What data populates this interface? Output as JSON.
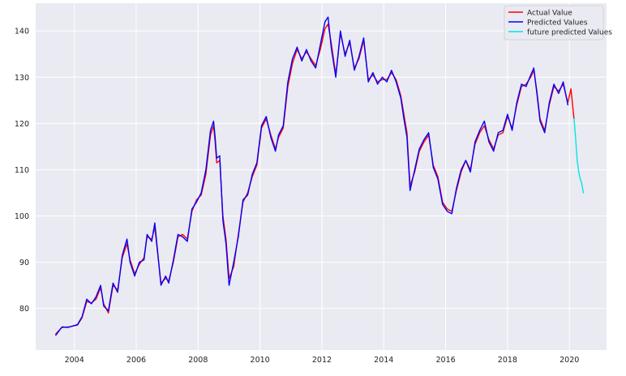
{
  "chart_data": {
    "type": "line",
    "title": "",
    "xlabel": "",
    "ylabel": "",
    "xlim": [
      2002.75,
      2021.2
    ],
    "ylim": [
      71,
      146
    ],
    "xticks": [
      2004,
      2006,
      2008,
      2010,
      2012,
      2014,
      2016,
      2018,
      2020
    ],
    "yticks": [
      80,
      90,
      100,
      110,
      120,
      130,
      140
    ],
    "grid": true,
    "legend_position": "top-right",
    "series": [
      {
        "name": "Actual Value",
        "color": "#ff0000",
        "x": [
          2003.4,
          2003.6,
          2003.8,
          2004.1,
          2004.25,
          2004.4,
          2004.55,
          2004.7,
          2004.85,
          2004.95,
          2005.1,
          2005.25,
          2005.4,
          2005.55,
          2005.7,
          2005.8,
          2005.95,
          2006.1,
          2006.25,
          2006.35,
          2006.5,
          2006.6,
          2006.8,
          2006.95,
          2007.05,
          2007.2,
          2007.35,
          2007.5,
          2007.65,
          2007.8,
          2007.95,
          2008.1,
          2008.25,
          2008.4,
          2008.5,
          2008.55,
          2008.6,
          2008.7,
          2008.8,
          2008.9,
          2009.0,
          2009.15,
          2009.3,
          2009.45,
          2009.6,
          2009.75,
          2009.9,
          2010.05,
          2010.2,
          2010.35,
          2010.5,
          2010.6,
          2010.75,
          2010.9,
          2011.05,
          2011.2,
          2011.35,
          2011.5,
          2011.65,
          2011.8,
          2011.95,
          2012.1,
          2012.2,
          2012.3,
          2012.45,
          2012.6,
          2012.75,
          2012.9,
          2013.05,
          2013.2,
          2013.35,
          2013.5,
          2013.65,
          2013.8,
          2013.95,
          2014.1,
          2014.25,
          2014.4,
          2014.55,
          2014.65,
          2014.75,
          2014.85,
          2015.0,
          2015.15,
          2015.3,
          2015.45,
          2015.6,
          2015.75,
          2015.9,
          2016.05,
          2016.2,
          2016.35,
          2016.5,
          2016.65,
          2016.8,
          2016.95,
          2017.1,
          2017.25,
          2017.4,
          2017.55,
          2017.7,
          2017.85,
          2018.0,
          2018.15,
          2018.3,
          2018.45,
          2018.6,
          2018.75,
          2018.85,
          2018.95,
          2019.05,
          2019.2,
          2019.35,
          2019.5,
          2019.65,
          2019.8,
          2019.95,
          2020.05,
          2020.15
        ],
        "y": [
          74.5,
          75.9,
          76.0,
          76.4,
          78.0,
          81.5,
          81.2,
          82.0,
          84.5,
          81.0,
          79.0,
          85.0,
          84.0,
          91.0,
          94.0,
          90.5,
          87.5,
          89.5,
          91.0,
          95.5,
          95.0,
          97.5,
          85.5,
          86.5,
          86.0,
          90.0,
          95.5,
          96.0,
          95.0,
          101.0,
          103.5,
          104.5,
          109.0,
          117.5,
          119.5,
          116.0,
          111.5,
          112.0,
          100.0,
          95.0,
          86.5,
          89.0,
          96.0,
          103.0,
          105.0,
          108.5,
          111.0,
          119.0,
          121.0,
          117.5,
          114.5,
          117.0,
          119.0,
          128.0,
          133.0,
          136.0,
          134.0,
          135.5,
          134.0,
          132.5,
          136.0,
          140.5,
          141.5,
          137.5,
          130.5,
          139.5,
          135.0,
          137.5,
          132.0,
          134.0,
          138.0,
          129.5,
          130.5,
          129.0,
          129.5,
          129.5,
          131.0,
          129.5,
          126.0,
          122.0,
          118.0,
          106.5,
          109.5,
          114.0,
          116.0,
          117.5,
          111.0,
          108.5,
          103.0,
          101.5,
          101.0,
          105.5,
          109.5,
          112.0,
          110.0,
          115.5,
          118.0,
          119.5,
          116.5,
          114.5,
          117.5,
          118.0,
          121.5,
          119.0,
          124.0,
          128.0,
          128.5,
          130.0,
          131.5,
          127.0,
          121.0,
          118.5,
          124.0,
          128.0,
          127.0,
          128.5,
          124.5,
          127.5,
          121.0
        ]
      },
      {
        "name": "Predicted Values",
        "color": "#0000ff",
        "x": [
          2003.4,
          2003.6,
          2003.8,
          2004.1,
          2004.25,
          2004.4,
          2004.55,
          2004.7,
          2004.85,
          2004.95,
          2005.1,
          2005.25,
          2005.4,
          2005.55,
          2005.7,
          2005.8,
          2005.95,
          2006.1,
          2006.25,
          2006.35,
          2006.5,
          2006.6,
          2006.8,
          2006.95,
          2007.05,
          2007.2,
          2007.35,
          2007.5,
          2007.65,
          2007.8,
          2007.95,
          2008.1,
          2008.25,
          2008.4,
          2008.5,
          2008.55,
          2008.6,
          2008.7,
          2008.8,
          2008.9,
          2009.0,
          2009.15,
          2009.3,
          2009.45,
          2009.6,
          2009.75,
          2009.9,
          2010.05,
          2010.2,
          2010.35,
          2010.5,
          2010.6,
          2010.75,
          2010.9,
          2011.05,
          2011.2,
          2011.35,
          2011.5,
          2011.65,
          2011.8,
          2011.95,
          2012.1,
          2012.2,
          2012.3,
          2012.45,
          2012.6,
          2012.75,
          2012.9,
          2013.05,
          2013.2,
          2013.35,
          2013.5,
          2013.65,
          2013.8,
          2013.95,
          2014.1,
          2014.25,
          2014.4,
          2014.55,
          2014.65,
          2014.75,
          2014.85,
          2015.0,
          2015.15,
          2015.3,
          2015.45,
          2015.6,
          2015.75,
          2015.9,
          2016.05,
          2016.2,
          2016.35,
          2016.5,
          2016.65,
          2016.8,
          2016.95,
          2017.1,
          2017.25,
          2017.4,
          2017.55,
          2017.7,
          2017.85,
          2018.0,
          2018.15,
          2018.3,
          2018.45,
          2018.6,
          2018.75,
          2018.85,
          2018.95,
          2019.05,
          2019.2,
          2019.35,
          2019.5,
          2019.65,
          2019.8,
          2019.95
        ],
        "y": [
          74.2,
          76.0,
          75.9,
          76.5,
          78.2,
          82.0,
          81.0,
          82.5,
          85.0,
          80.5,
          79.5,
          85.5,
          83.5,
          91.5,
          95.0,
          90.0,
          87.0,
          90.0,
          90.5,
          96.0,
          94.5,
          98.5,
          85.0,
          87.0,
          85.5,
          90.5,
          96.0,
          95.5,
          94.5,
          101.5,
          103.0,
          105.0,
          110.0,
          118.5,
          120.5,
          117.0,
          112.5,
          113.0,
          99.0,
          94.0,
          85.0,
          90.0,
          95.5,
          103.5,
          104.5,
          109.0,
          111.5,
          119.5,
          121.5,
          117.0,
          114.0,
          117.5,
          119.5,
          129.0,
          134.0,
          136.5,
          133.5,
          136.0,
          133.5,
          132.0,
          137.0,
          142.0,
          143.0,
          136.5,
          130.0,
          140.0,
          134.5,
          138.0,
          131.5,
          134.5,
          138.5,
          129.0,
          131.0,
          128.5,
          130.0,
          129.0,
          131.5,
          129.0,
          125.5,
          121.0,
          117.0,
          105.5,
          110.0,
          114.5,
          116.5,
          118.0,
          110.5,
          108.0,
          102.5,
          101.0,
          100.5,
          106.0,
          110.0,
          112.0,
          109.5,
          116.0,
          118.5,
          120.5,
          116.0,
          114.0,
          118.0,
          118.5,
          122.0,
          118.5,
          124.5,
          128.5,
          128.0,
          130.5,
          132.0,
          126.5,
          120.5,
          118.0,
          124.5,
          128.5,
          126.5,
          129.0,
          124.0
        ]
      },
      {
        "name": "future predicted Values",
        "color": "#00e5e5",
        "x": [
          2020.15,
          2020.2,
          2020.25,
          2020.3,
          2020.35,
          2020.4,
          2020.45
        ],
        "y": [
          121.0,
          117.0,
          112.0,
          109.5,
          108.0,
          107.0,
          105.0
        ]
      }
    ]
  }
}
